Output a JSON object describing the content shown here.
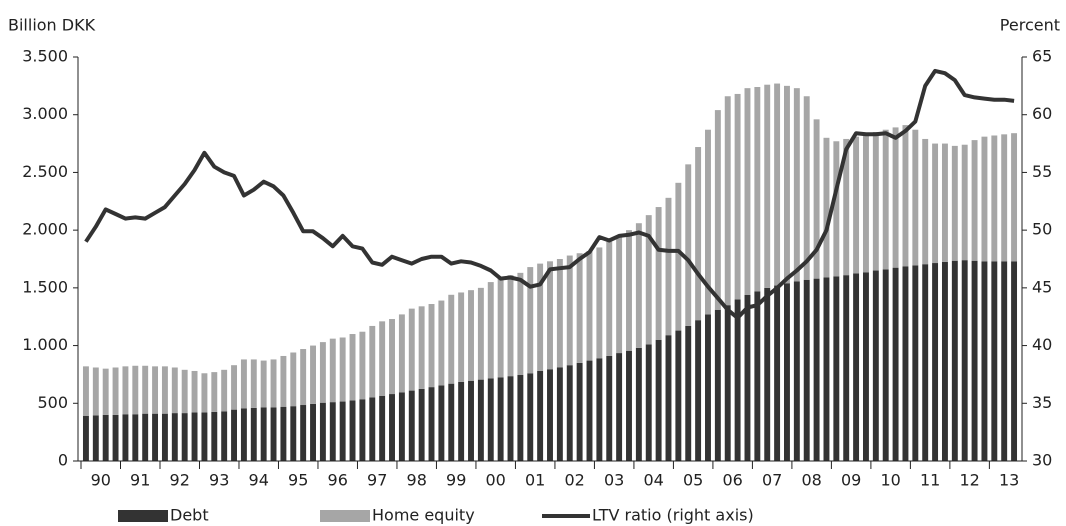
{
  "chart_data": {
    "type": "bar",
    "stacked": true,
    "y_axis_label": "Billion DKK",
    "y2_axis_label": "Percent",
    "categories": [
      "90",
      null,
      null,
      null,
      "91",
      null,
      null,
      null,
      "92",
      null,
      null,
      null,
      "93",
      null,
      null,
      null,
      "94",
      null,
      null,
      null,
      "95",
      null,
      null,
      null,
      "96",
      null,
      null,
      null,
      "97",
      null,
      null,
      null,
      "98",
      null,
      null,
      null,
      "99",
      null,
      null,
      null,
      "00",
      null,
      null,
      null,
      "01",
      null,
      null,
      null,
      "02",
      null,
      null,
      null,
      "03",
      null,
      null,
      null,
      "04",
      null,
      null,
      null,
      "05",
      null,
      null,
      null,
      "06",
      null,
      null,
      null,
      "07",
      null,
      null,
      null,
      "08",
      null,
      null,
      null,
      "09",
      null,
      null,
      null,
      "10",
      null,
      null,
      null,
      "11",
      null,
      null,
      null,
      "12",
      null,
      null,
      null,
      "13",
      null,
      null
    ],
    "series": [
      {
        "name": "Debt",
        "color": "#333333",
        "type": "bar",
        "values": [
          390,
          395,
          400,
          400,
          405,
          405,
          410,
          410,
          410,
          415,
          415,
          420,
          420,
          425,
          430,
          445,
          455,
          460,
          465,
          465,
          470,
          475,
          485,
          495,
          505,
          510,
          515,
          525,
          535,
          550,
          565,
          580,
          595,
          610,
          625,
          640,
          655,
          670,
          685,
          695,
          705,
          715,
          725,
          735,
          745,
          760,
          780,
          795,
          810,
          830,
          850,
          870,
          890,
          910,
          935,
          955,
          980,
          1010,
          1050,
          1090,
          1130,
          1170,
          1220,
          1270,
          1310,
          1350,
          1400,
          1440,
          1470,
          1500,
          1520,
          1540,
          1555,
          1570,
          1580,
          1590,
          1600,
          1610,
          1625,
          1635,
          1650,
          1660,
          1675,
          1685,
          1695,
          1705,
          1715,
          1725,
          1735,
          1740,
          1735,
          1730,
          1730,
          1730,
          1730
        ]
      },
      {
        "name": "Home equity",
        "color": "#a6a6a6",
        "type": "bar",
        "values": [
          430,
          415,
          400,
          410,
          415,
          420,
          415,
          410,
          410,
          395,
          375,
          360,
          340,
          345,
          360,
          385,
          425,
          420,
          405,
          415,
          440,
          465,
          485,
          505,
          525,
          550,
          555,
          575,
          585,
          620,
          645,
          650,
          675,
          710,
          715,
          720,
          735,
          770,
          775,
          785,
          795,
          835,
          855,
          875,
          885,
          920,
          930,
          935,
          940,
          950,
          950,
          950,
          960,
          990,
          1015,
          1045,
          1080,
          1120,
          1150,
          1190,
          1280,
          1400,
          1500,
          1600,
          1730,
          1810,
          1780,
          1790,
          1770,
          1760,
          1750,
          1710,
          1675,
          1590,
          1380,
          1210,
          1170,
          1180,
          1185,
          1195,
          1200,
          1210,
          1215,
          1225,
          1175,
          1085,
          1035,
          1025,
          995,
          1000,
          1045,
          1080,
          1090,
          1100,
          1110
        ]
      },
      {
        "name": "LTV ratio (right axis)",
        "color": "#333333",
        "type": "line",
        "axis": "y2",
        "values": [
          49,
          50.3,
          51.8,
          51.4,
          51,
          51.1,
          51,
          51.5,
          52,
          53,
          54,
          55.2,
          56.7,
          55.5,
          55,
          54.7,
          53,
          53.5,
          54.2,
          53.8,
          53,
          51.5,
          49.9,
          49.9,
          49.3,
          48.6,
          49.5,
          48.6,
          48.4,
          47.2,
          47,
          47.7,
          47.4,
          47.1,
          47.5,
          47.7,
          47.7,
          47.1,
          47.3,
          47.2,
          46.9,
          46.5,
          45.8,
          45.9,
          45.7,
          45.1,
          45.3,
          46.6,
          46.7,
          46.8,
          47.5,
          48.1,
          49.4,
          49.1,
          49.5,
          49.6,
          49.8,
          49.5,
          48.3,
          48.2,
          48.2,
          47.4,
          46.2,
          45.1,
          44.1,
          43.1,
          42.4,
          43.3,
          43.5,
          44.3,
          45,
          45.8,
          46.5,
          47.3,
          48.3,
          50,
          53.5,
          57,
          58.4,
          58.3,
          58.3,
          58.4,
          58,
          58.6,
          59.4,
          62.5,
          63.8,
          63.6,
          63,
          61.7,
          61.5,
          61.4,
          61.3,
          61.3,
          61.2
        ]
      }
    ],
    "ylim": [
      0,
      3500
    ],
    "yticks": [
      0,
      500,
      {
        "value": 1000,
        "label": "1.000"
      },
      {
        "value": 1500,
        "label": "1.500"
      },
      {
        "value": 2000,
        "label": "2.000"
      },
      {
        "value": 2500,
        "label": "2.500"
      },
      {
        "value": 3000,
        "label": "3.000"
      },
      {
        "value": 3500,
        "label": "3.500"
      }
    ],
    "y2lim": [
      30,
      65
    ],
    "y2ticks": [
      30,
      35,
      40,
      45,
      50,
      55,
      60,
      65
    ],
    "legend": "bottom"
  }
}
